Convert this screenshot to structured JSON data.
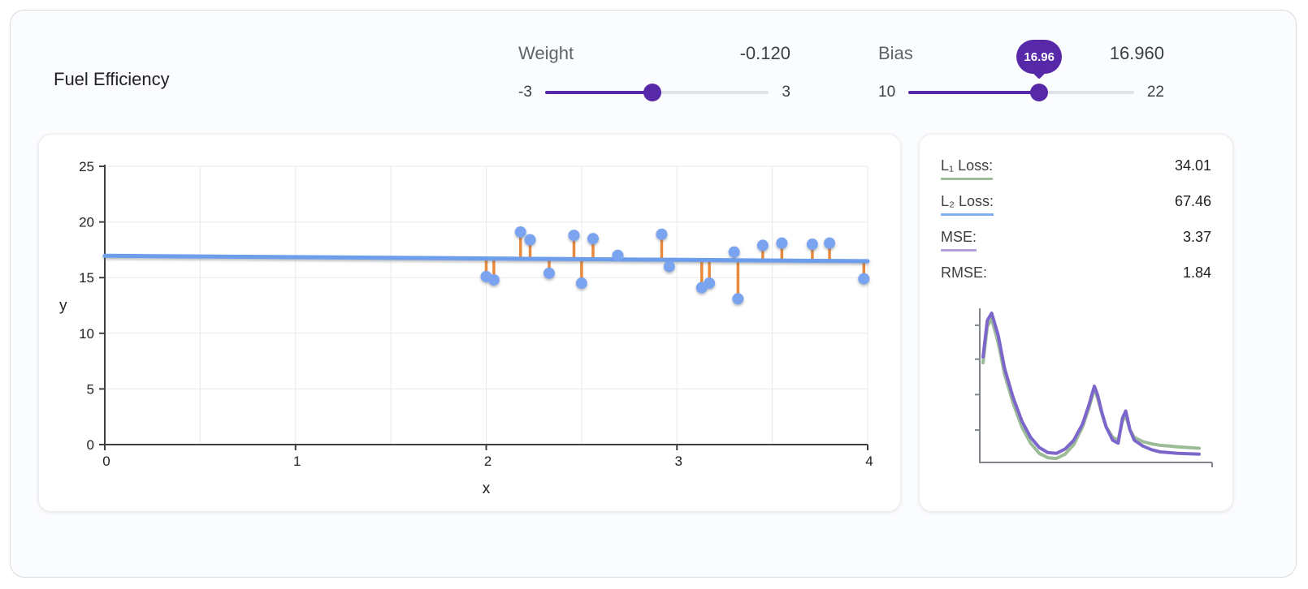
{
  "header": {
    "title": "Fuel Efficiency"
  },
  "controls": {
    "weight": {
      "label": "Weight",
      "value": "-0.120",
      "min_label": "-3",
      "max_label": "3",
      "fraction": 0.48
    },
    "bias": {
      "label": "Bias",
      "value": "16.960",
      "min_label": "10",
      "max_label": "22",
      "fraction": 0.58,
      "tooltip": "16.96"
    }
  },
  "loss_panel": {
    "rows": [
      {
        "label": "L₁ Loss:",
        "value": "34.01",
        "underline_color": "#9cbc97"
      },
      {
        "label": "L₂ Loss:",
        "value": "67.46",
        "underline_color": "#82aef5"
      },
      {
        "label": "MSE:",
        "value": "3.37",
        "underline_color": "#b39ddb"
      },
      {
        "label": "RMSE:",
        "value": "1.84",
        "underline_color": ""
      }
    ]
  },
  "chart_data": [
    {
      "type": "scatter",
      "title": "Fuel Efficiency model fit",
      "xlabel": "x",
      "ylabel": "y",
      "xlim": [
        0,
        4
      ],
      "ylim": [
        0,
        25
      ],
      "xticks": [
        0,
        1,
        2,
        3,
        4
      ],
      "yticks": [
        0,
        5,
        10,
        15,
        20,
        25
      ],
      "x_grid_step": 0.5,
      "points": [
        [
          2.0,
          15.1
        ],
        [
          2.04,
          14.8
        ],
        [
          2.18,
          19.1
        ],
        [
          2.23,
          18.4
        ],
        [
          2.33,
          15.4
        ],
        [
          2.46,
          18.8
        ],
        [
          2.5,
          14.5
        ],
        [
          2.56,
          18.5
        ],
        [
          2.69,
          17.0
        ],
        [
          2.92,
          18.9
        ],
        [
          2.96,
          16.0
        ],
        [
          3.13,
          14.1
        ],
        [
          3.17,
          14.5
        ],
        [
          3.3,
          17.3
        ],
        [
          3.32,
          13.1
        ],
        [
          3.45,
          17.9
        ],
        [
          3.55,
          18.1
        ],
        [
          3.71,
          18.0
        ],
        [
          3.8,
          18.1
        ],
        [
          3.98,
          14.9
        ]
      ],
      "model_line": {
        "weight": -0.12,
        "bias": 16.96
      },
      "colors": {
        "point": "#7aa3f0",
        "line": "#6d9eeb",
        "residual": "#e8893c",
        "grid": "#e9eaee",
        "axis": "#3c4043"
      }
    },
    {
      "type": "line",
      "title": "loss curves",
      "x": [
        0,
        0.02,
        0.04,
        0.07,
        0.1,
        0.14,
        0.18,
        0.22,
        0.26,
        0.3,
        0.34,
        0.38,
        0.42,
        0.46,
        0.49,
        0.515,
        0.53,
        0.55,
        0.57,
        0.6,
        0.625,
        0.645,
        0.66,
        0.68,
        0.7,
        0.74,
        0.78,
        0.82,
        0.86,
        0.9,
        0.95,
        1.0
      ],
      "series": [
        {
          "name": "L₁ Loss",
          "color": "#9cbc97",
          "values": [
            0.66,
            0.91,
            0.96,
            0.8,
            0.58,
            0.38,
            0.22,
            0.11,
            0.04,
            0.01,
            0.005,
            0.035,
            0.1,
            0.22,
            0.35,
            0.48,
            0.42,
            0.31,
            0.22,
            0.15,
            0.13,
            0.26,
            0.3,
            0.2,
            0.15,
            0.12,
            0.105,
            0.095,
            0.09,
            0.085,
            0.08,
            0.075
          ]
        },
        {
          "name": "MSE",
          "color": "#7d66cb",
          "values": [
            0.7,
            0.95,
            1.0,
            0.85,
            0.62,
            0.42,
            0.26,
            0.15,
            0.08,
            0.045,
            0.04,
            0.07,
            0.13,
            0.24,
            0.37,
            0.5,
            0.44,
            0.32,
            0.22,
            0.13,
            0.11,
            0.28,
            0.33,
            0.2,
            0.13,
            0.09,
            0.065,
            0.05,
            0.045,
            0.04,
            0.038,
            0.035
          ]
        }
      ],
      "axis_color": "#80868b"
    }
  ]
}
